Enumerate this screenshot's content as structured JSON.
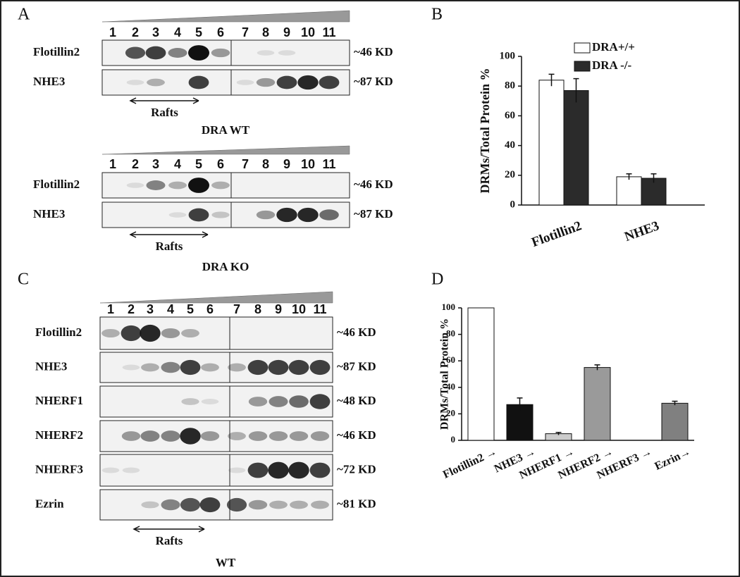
{
  "panel_labels": [
    "A",
    "B",
    "C",
    "D"
  ],
  "blot_a_wt": {
    "lanes": [
      "1",
      "2",
      "3",
      "4",
      "5",
      "6",
      "7",
      "8",
      "9",
      "10",
      "11"
    ],
    "rows": [
      {
        "label": "Flotillin2",
        "size": "~46 KD"
      },
      {
        "label": "NHE3",
        "size": "~87 KD"
      }
    ],
    "rafts": "Rafts",
    "caption": "DRA WT"
  },
  "blot_a_ko": {
    "lanes": [
      "1",
      "2",
      "3",
      "4",
      "5",
      "6",
      "7",
      "8",
      "9",
      "10",
      "11"
    ],
    "rows": [
      {
        "label": "Flotillin2",
        "size": "~46 KD"
      },
      {
        "label": "NHE3",
        "size": "~87 KD"
      }
    ],
    "rafts": "Rafts",
    "caption": "DRA KO"
  },
  "blot_c": {
    "lanes": [
      "1",
      "2",
      "3",
      "4",
      "5",
      "6",
      "7",
      "8",
      "9",
      "10",
      "11"
    ],
    "rows": [
      {
        "label": "Flotillin2",
        "size": "~46 KD"
      },
      {
        "label": "NHE3",
        "size": "~87 KD"
      },
      {
        "label": "NHERF1",
        "size": "~48 KD"
      },
      {
        "label": "NHERF2",
        "size": "~46 KD"
      },
      {
        "label": "NHERF3",
        "size": "~72 KD"
      },
      {
        "label": "Ezrin",
        "size": "~81 KD"
      }
    ],
    "rafts": "Rafts",
    "caption": "WT"
  },
  "chart_data": [
    {
      "type": "grouped_bar",
      "ylabel": "DRMs/Total Protein %",
      "categories": [
        "Flotillin2",
        "NHE3"
      ],
      "series": [
        {
          "name": "DRA+/+",
          "color": "#ffffff",
          "values": [
            84,
            19
          ],
          "errors": [
            4,
            2
          ]
        },
        {
          "name": "DRA -/-",
          "color": "#2b2b2b",
          "values": [
            77,
            18
          ],
          "errors": [
            8,
            3
          ]
        }
      ],
      "ylim": [
        0,
        100
      ],
      "yticks": [
        0,
        20,
        40,
        60,
        80,
        100
      ],
      "legend": "top-right"
    },
    {
      "type": "bar",
      "ylabel": "DRMs/Total Protein %",
      "categories": [
        "Flotillin2 →",
        "NHE3 →",
        "NHERF1 →",
        "NHERF2 →",
        "NHERF3 →",
        "Ezrin→"
      ],
      "values": [
        100,
        27,
        5,
        55,
        0,
        28
      ],
      "errors": [
        null,
        5,
        1,
        2,
        null,
        1.5
      ],
      "colors": [
        "#ffffff",
        "#111111",
        "#cccccc",
        "#9a9a9a",
        "#ffffff",
        "#808080"
      ],
      "ylim": [
        0,
        100
      ],
      "yticks": [
        0,
        20,
        40,
        60,
        80,
        100
      ]
    }
  ]
}
